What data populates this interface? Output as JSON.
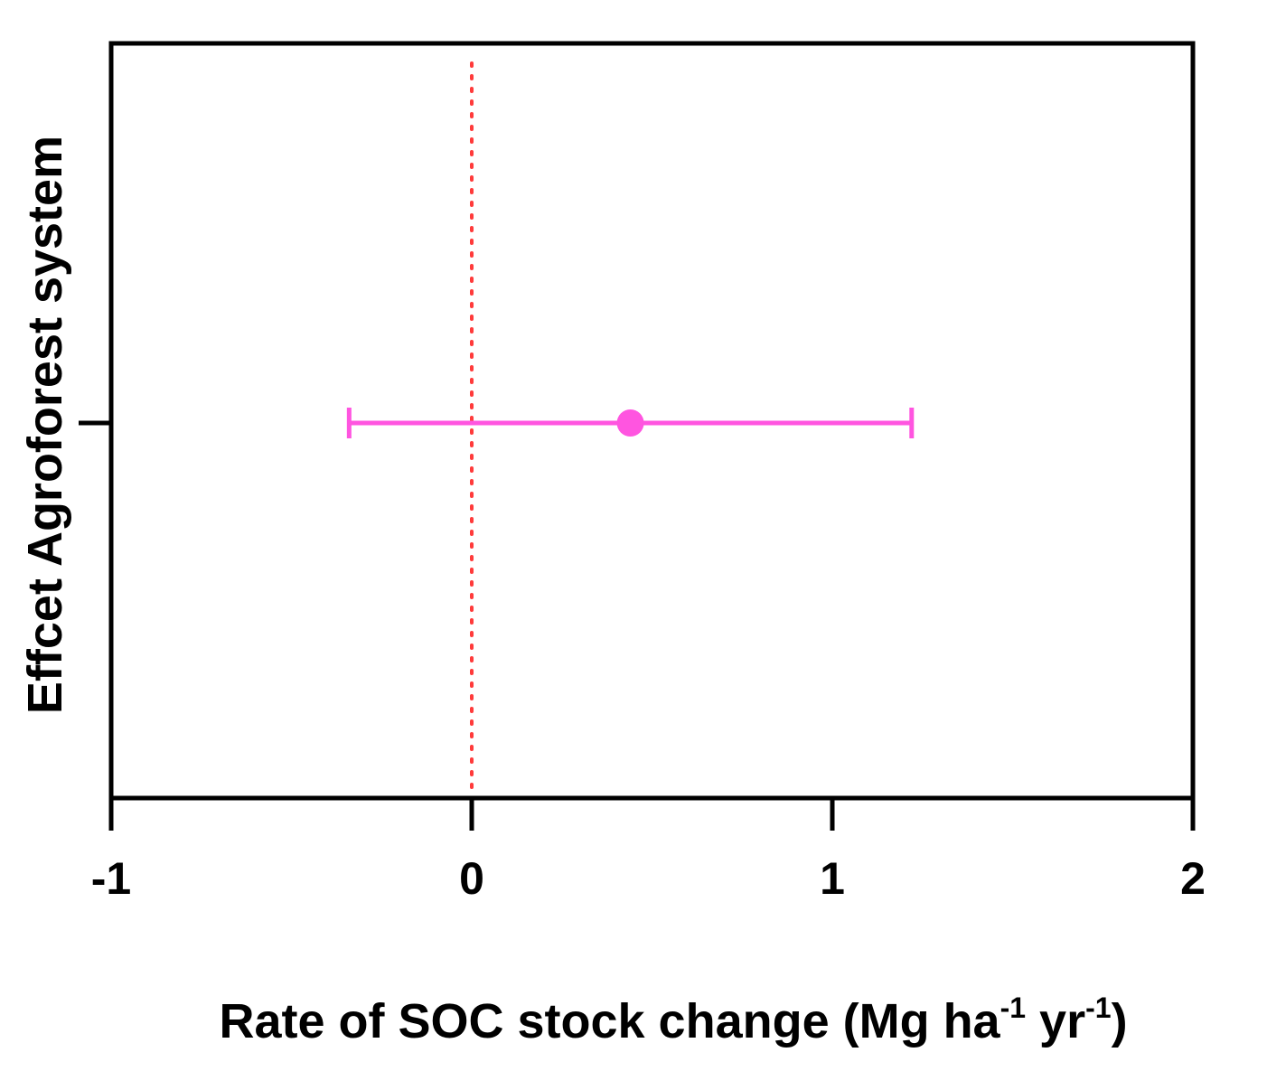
{
  "chart_data": {
    "type": "forest",
    "title": "",
    "xlabel": {
      "parts": [
        {
          "text": "Rate of SOC stock change (Mg ha",
          "sup": false
        },
        {
          "text": "-1",
          "sup": true
        },
        {
          "text": " yr",
          "sup": false
        },
        {
          "text": "-1",
          "sup": true
        },
        {
          "text": ")",
          "sup": false
        }
      ]
    },
    "ylabel": "Effcet Agroforest system",
    "xlim": [
      -1,
      2
    ],
    "xticks": [
      -1,
      0,
      1,
      2
    ],
    "xtick_labels": [
      "-1",
      "0",
      "1",
      "2"
    ],
    "reference_line": {
      "x": 0,
      "style": "dotted",
      "color": "#ff3b3b"
    },
    "points": [
      {
        "estimate": 0.44,
        "ci_low": -0.34,
        "ci_high": 1.22,
        "color": "#ff55e0"
      }
    ],
    "grid": false,
    "legend": "none"
  }
}
